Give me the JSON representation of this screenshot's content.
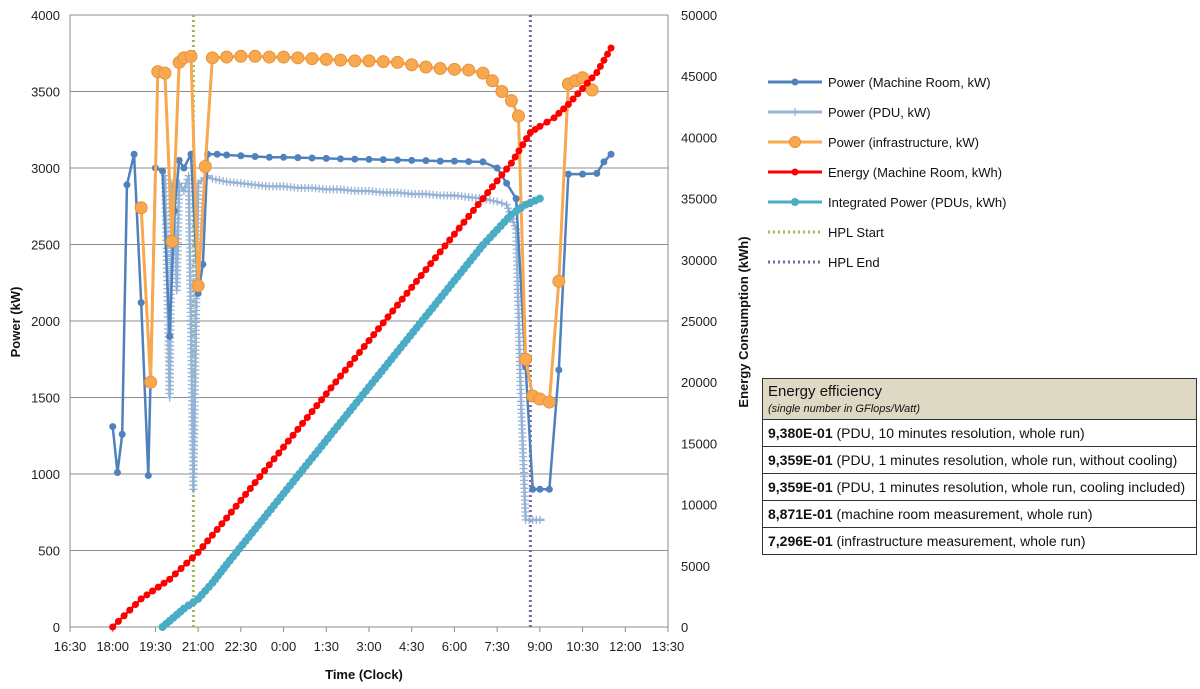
{
  "chart_data": {
    "type": "line",
    "xlabel": "Time (Clock)",
    "ylabel": "Power (kW)",
    "y2label": "Energy Consumption (kWh)",
    "ylim": [
      0,
      4000
    ],
    "y2lim": [
      0,
      50000
    ],
    "xlim": [
      "16:30",
      "13:30"
    ],
    "grid": true,
    "legend_position": "right",
    "x_ticks": [
      "16:30",
      "18:00",
      "19:30",
      "21:00",
      "22:30",
      "0:00",
      "1:30",
      "3:00",
      "4:30",
      "6:00",
      "7:30",
      "9:00",
      "10:30",
      "12:00",
      "13:30"
    ],
    "y_ticks": [
      "0",
      "500",
      "1000",
      "1500",
      "2000",
      "2500",
      "3000",
      "3500",
      "4000"
    ],
    "y2_ticks": [
      "0",
      "5000",
      "10000",
      "15000",
      "20000",
      "25000",
      "30000",
      "35000",
      "40000",
      "45000",
      "50000"
    ],
    "hpl_start": "20:50",
    "hpl_end": "8:40",
    "series": [
      {
        "name": "Power (Machine Room, kW)",
        "axis": "left",
        "color": "#4f81bd",
        "points": [
          [
            "18:00",
            1310
          ],
          [
            "18:10",
            1010
          ],
          [
            "18:20",
            1260
          ],
          [
            "18:30",
            2890
          ],
          [
            "18:45",
            3090
          ],
          [
            "19:00",
            2120
          ],
          [
            "19:15",
            990
          ],
          [
            "19:30",
            3000
          ],
          [
            "19:45",
            2980
          ],
          [
            "20:00",
            1900
          ],
          [
            "20:10",
            2720
          ],
          [
            "20:20",
            3050
          ],
          [
            "20:30",
            3000
          ],
          [
            "20:45",
            3090
          ],
          [
            "21:00",
            2180
          ],
          [
            "21:10",
            2370
          ],
          [
            "21:20",
            3090
          ],
          [
            "21:40",
            3090
          ],
          [
            "22:00",
            3085
          ],
          [
            "22:30",
            3080
          ],
          [
            "23:00",
            3075
          ],
          [
            "23:30",
            3070
          ],
          [
            "0:00",
            3070
          ],
          [
            "0:30",
            3068
          ],
          [
            "1:00",
            3065
          ],
          [
            "1:30",
            3063
          ],
          [
            "2:00",
            3060
          ],
          [
            "2:30",
            3058
          ],
          [
            "3:00",
            3056
          ],
          [
            "3:30",
            3055
          ],
          [
            "4:00",
            3052
          ],
          [
            "4:30",
            3050
          ],
          [
            "5:00",
            3048
          ],
          [
            "5:30",
            3045
          ],
          [
            "6:00",
            3045
          ],
          [
            "6:30",
            3042
          ],
          [
            "7:00",
            3040
          ],
          [
            "7:30",
            3000
          ],
          [
            "7:50",
            2900
          ],
          [
            "8:10",
            2800
          ],
          [
            "8:30",
            1700
          ],
          [
            "8:45",
            900
          ],
          [
            "9:00",
            900
          ],
          [
            "9:20",
            900
          ],
          [
            "9:40",
            1680
          ],
          [
            "10:00",
            2960
          ],
          [
            "10:30",
            2960
          ],
          [
            "11:00",
            2965
          ],
          [
            "11:15",
            3040
          ],
          [
            "11:30",
            3090
          ]
        ]
      },
      {
        "name": "Power (PDU, kW)",
        "axis": "left",
        "color": "#95b3d7",
        "points": [
          [
            "19:50",
            2950
          ],
          [
            "20:00",
            1500
          ],
          [
            "20:05",
            2900
          ],
          [
            "20:10",
            2800
          ],
          [
            "20:15",
            2200
          ],
          [
            "20:20",
            2900
          ],
          [
            "20:30",
            2850
          ],
          [
            "20:40",
            2950
          ],
          [
            "20:50",
            900
          ],
          [
            "21:00",
            2900
          ],
          [
            "21:20",
            2950
          ],
          [
            "21:30",
            2930
          ],
          [
            "22:00",
            2910
          ],
          [
            "22:30",
            2900
          ],
          [
            "23:00",
            2890
          ],
          [
            "23:30",
            2880
          ],
          [
            "0:00",
            2880
          ],
          [
            "0:30",
            2870
          ],
          [
            "1:00",
            2870
          ],
          [
            "1:30",
            2860
          ],
          [
            "2:00",
            2860
          ],
          [
            "2:30",
            2850
          ],
          [
            "3:00",
            2850
          ],
          [
            "3:30",
            2840
          ],
          [
            "4:00",
            2840
          ],
          [
            "4:30",
            2830
          ],
          [
            "5:00",
            2830
          ],
          [
            "5:30",
            2820
          ],
          [
            "6:00",
            2820
          ],
          [
            "6:30",
            2810
          ],
          [
            "7:00",
            2800
          ],
          [
            "7:30",
            2780
          ],
          [
            "7:50",
            2760
          ],
          [
            "8:10",
            2600
          ],
          [
            "8:20",
            1500
          ],
          [
            "8:30",
            700
          ],
          [
            "8:45",
            700
          ],
          [
            "9:00",
            700
          ],
          [
            "9:10",
            700
          ]
        ]
      },
      {
        "name": "Power (infrastructure, kW)",
        "axis": "left",
        "color": "#f8a84e",
        "points": [
          [
            "19:00",
            2740
          ],
          [
            "19:20",
            1600
          ],
          [
            "19:35",
            3630
          ],
          [
            "19:50",
            3620
          ],
          [
            "20:05",
            2520
          ],
          [
            "20:20",
            3690
          ],
          [
            "20:30",
            3720
          ],
          [
            "20:45",
            3730
          ],
          [
            "21:00",
            2230
          ],
          [
            "21:15",
            3010
          ],
          [
            "21:30",
            3720
          ],
          [
            "22:00",
            3725
          ],
          [
            "22:30",
            3730
          ],
          [
            "23:00",
            3730
          ],
          [
            "23:30",
            3725
          ],
          [
            "0:00",
            3725
          ],
          [
            "0:30",
            3720
          ],
          [
            "1:00",
            3715
          ],
          [
            "1:30",
            3710
          ],
          [
            "2:00",
            3705
          ],
          [
            "2:30",
            3700
          ],
          [
            "3:00",
            3700
          ],
          [
            "3:30",
            3695
          ],
          [
            "4:00",
            3690
          ],
          [
            "4:30",
            3675
          ],
          [
            "5:00",
            3660
          ],
          [
            "5:30",
            3650
          ],
          [
            "6:00",
            3645
          ],
          [
            "6:30",
            3640
          ],
          [
            "7:00",
            3620
          ],
          [
            "7:20",
            3570
          ],
          [
            "7:40",
            3500
          ],
          [
            "8:00",
            3440
          ],
          [
            "8:15",
            3340
          ],
          [
            "8:30",
            1750
          ],
          [
            "8:45",
            1510
          ],
          [
            "9:00",
            1490
          ],
          [
            "9:20",
            1470
          ],
          [
            "9:40",
            2260
          ],
          [
            "10:00",
            3550
          ],
          [
            "10:15",
            3570
          ],
          [
            "10:30",
            3590
          ],
          [
            "10:50",
            3510
          ]
        ]
      },
      {
        "name": "Energy (Machine Room, kWh)",
        "axis": "right",
        "color": "#ff0000",
        "points": [
          [
            "18:00",
            0
          ],
          [
            "19:00",
            2300
          ],
          [
            "20:00",
            3900
          ],
          [
            "21:00",
            6100
          ],
          [
            "22:00",
            8900
          ],
          [
            "23:00",
            11800
          ],
          [
            "0:00",
            14700
          ],
          [
            "1:00",
            17600
          ],
          [
            "2:00",
            20500
          ],
          [
            "3:00",
            23400
          ],
          [
            "4:00",
            26300
          ],
          [
            "5:00",
            29200
          ],
          [
            "6:00",
            32100
          ],
          [
            "7:00",
            35000
          ],
          [
            "8:00",
            37900
          ],
          [
            "8:40",
            40400
          ],
          [
            "9:00",
            40900
          ],
          [
            "9:30",
            41600
          ],
          [
            "10:00",
            42700
          ],
          [
            "10:30",
            44000
          ],
          [
            "11:00",
            45300
          ],
          [
            "11:30",
            47300
          ]
        ]
      },
      {
        "name": "Integrated Power (PDUs, kWh)",
        "axis": "right",
        "color": "#4bacc6",
        "points": [
          [
            "19:45",
            0
          ],
          [
            "20:00",
            500
          ],
          [
            "20:30",
            1500
          ],
          [
            "21:00",
            2300
          ],
          [
            "21:30",
            3600
          ],
          [
            "22:00",
            5100
          ],
          [
            "23:00",
            8000
          ],
          [
            "0:00",
            10900
          ],
          [
            "1:00",
            13800
          ],
          [
            "2:00",
            16700
          ],
          [
            "3:00",
            19600
          ],
          [
            "4:00",
            22500
          ],
          [
            "5:00",
            25400
          ],
          [
            "6:00",
            28300
          ],
          [
            "7:00",
            31200
          ],
          [
            "8:00",
            33700
          ],
          [
            "8:30",
            34500
          ],
          [
            "9:00",
            35000
          ]
        ]
      },
      {
        "name": "HPL Start",
        "type": "vline",
        "color": "#9bbb59",
        "x": "20:50"
      },
      {
        "name": "HPL End",
        "type": "vline",
        "color": "#8064a2",
        "x": "8:40"
      }
    ]
  },
  "efficiency_table": {
    "title": "Energy efficiency",
    "subtitle": "(single number in GFlops/Watt)",
    "rows": [
      {
        "value": "9,380E-01",
        "desc": " (PDU, 10 minutes resolution, whole run)"
      },
      {
        "value": "9,359E-01",
        "desc": " (PDU, 1 minutes resolution, whole run, without cooling)"
      },
      {
        "value": "9,359E-01",
        "desc": " (PDU, 1 minutes resolution, whole run, cooling included)"
      },
      {
        "value": "8,871E-01",
        "desc": " (machine room measurement, whole run)"
      },
      {
        "value": "7,296E-01",
        "desc": " (infrastructure measurement, whole  run)"
      }
    ]
  }
}
